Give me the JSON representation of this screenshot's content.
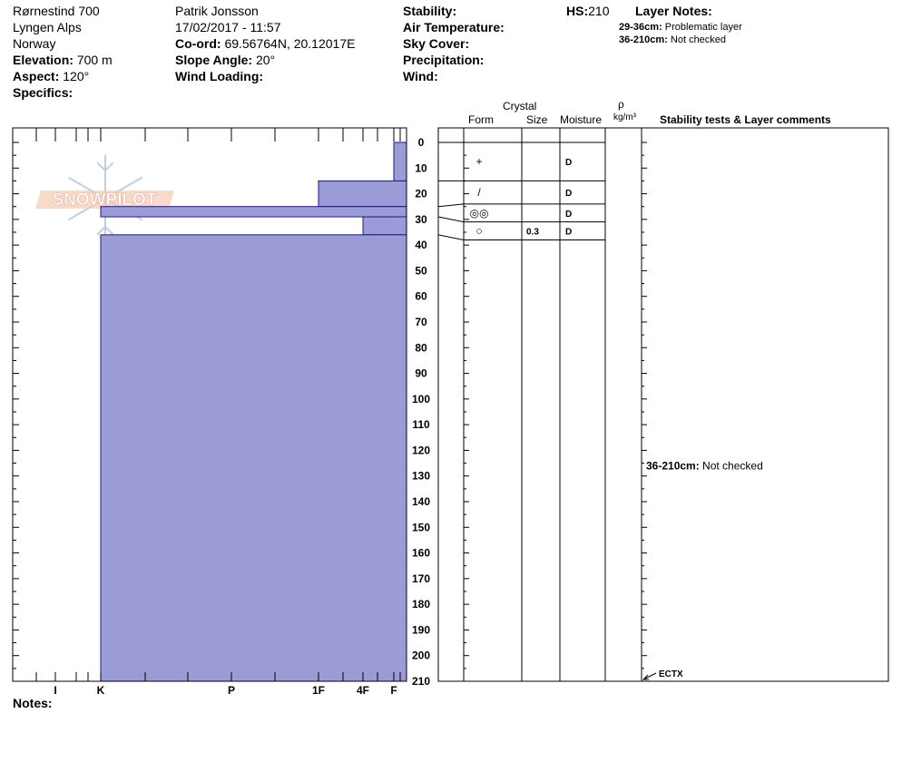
{
  "header": {
    "location": "Rørnestind 700",
    "range": "Lyngen Alps",
    "country": "Norway",
    "elevation_label": "Elevation:",
    "elevation_value": "700 m",
    "aspect_label": "Aspect:",
    "aspect_value": "120°",
    "specifics_label": "Specifics:",
    "observer": "Patrik Jonsson",
    "datetime": "17/02/2017 - 11:57",
    "coord_label": "Co-ord:",
    "coord_value": "69.56764N, 20.12017E",
    "slope_label": "Slope Angle:",
    "slope_value": "20°",
    "wind_loading_label": "Wind Loading:",
    "stability_label": "Stability:",
    "air_temp_label": "Air Temperature:",
    "sky_cover_label": "Sky Cover:",
    "precip_label": "Precipitation:",
    "wind_label": "Wind:",
    "hs_label": "HS:",
    "hs_value": "210",
    "layer_notes_title": "Layer Notes:",
    "layer_notes": [
      {
        "range": "29-36cm:",
        "note": "Problematic layer"
      },
      {
        "range": "36-210cm:",
        "note": "Not checked"
      }
    ]
  },
  "columns": {
    "crystal": "Crystal",
    "form": "Form",
    "size": "Size",
    "moisture": "Moisture",
    "rho": "ρ",
    "density_unit": "kg/m³",
    "comments": "Stability tests & Layer comments"
  },
  "notes_label": "Notes:",
  "logo_text": "SNOWPILOT",
  "colors": {
    "layer_fill": "#9b9bd7",
    "layer_stroke": "#1c1c7a"
  },
  "chart_data": {
    "type": "bar",
    "orientation": "horizontal",
    "depth_axis": {
      "ticks": [
        0,
        10,
        20,
        30,
        40,
        50,
        60,
        70,
        80,
        90,
        100,
        110,
        120,
        130,
        140,
        150,
        160,
        170,
        180,
        190,
        200,
        210
      ],
      "range": [
        0,
        210
      ]
    },
    "hardness_ticks": [
      "I",
      "K",
      "P",
      "1F",
      "4F",
      "F"
    ],
    "layers": [
      {
        "top": 0,
        "bottom": 15,
        "hardness": "F"
      },
      {
        "top": 15,
        "bottom": 25,
        "hardness": "1F"
      },
      {
        "top": 25,
        "bottom": 29,
        "hardness": "K"
      },
      {
        "top": 29,
        "bottom": 36,
        "hardness": "4F"
      },
      {
        "top": 36,
        "bottom": 210,
        "hardness": "K"
      }
    ],
    "layer_rows": [
      {
        "top": 0,
        "bottom": 15,
        "form": "+",
        "size": "",
        "moisture": "D"
      },
      {
        "top": 15,
        "bottom": 24,
        "form": "/",
        "size": "",
        "moisture": "D"
      },
      {
        "top": 24,
        "bottom": 31,
        "form": "◎◎",
        "size": "",
        "moisture": "D"
      },
      {
        "top": 31,
        "bottom": 38,
        "form": "○",
        "size": "0.3",
        "moisture": "D"
      }
    ],
    "comments": [
      {
        "range": "36-210cm:",
        "note": "Not checked",
        "depth": 126
      },
      {
        "text": "ECTX",
        "depth": 210
      }
    ]
  }
}
